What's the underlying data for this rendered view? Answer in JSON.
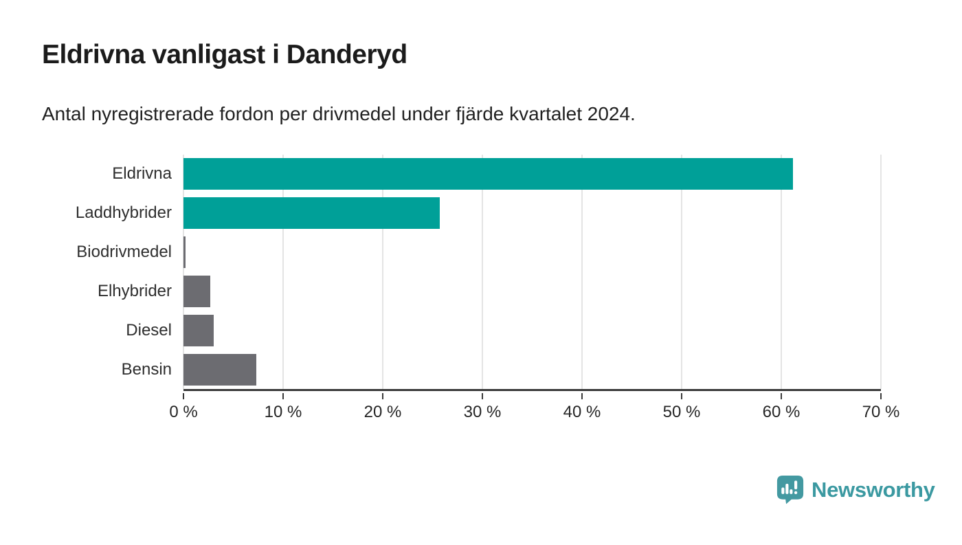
{
  "header": {
    "title": "Eldrivna vanligast i Danderyd",
    "subtitle": "Antal nyregistrerade fordon per drivmedel under fjärde kvartalet 2024."
  },
  "chart_data": {
    "type": "bar",
    "orientation": "horizontal",
    "title": "Eldrivna vanligast i Danderyd",
    "subtitle": "Antal nyregistrerade fordon per drivmedel under fjärde kvartalet 2024.",
    "categories": [
      "Eldrivna",
      "Laddhybrider",
      "Biodrivmedel",
      "Elhybrider",
      "Diesel",
      "Bensin"
    ],
    "values": [
      61.2,
      25.7,
      0.2,
      2.7,
      3.0,
      7.3
    ],
    "unit": "%",
    "xlabel": "",
    "ylabel": "",
    "xlim": [
      0,
      70
    ],
    "x_tick_values": [
      0,
      10,
      20,
      30,
      40,
      50,
      60,
      70
    ],
    "x_tick_labels": [
      "0 %",
      "10 %",
      "20 %",
      "30 %",
      "40 %",
      "50 %",
      "60 %",
      "70 %"
    ],
    "grid": true,
    "legend": false,
    "bar_colors": [
      "#00a098",
      "#00a098",
      "#6c6c71",
      "#6c6c71",
      "#6c6c71",
      "#6c6c71"
    ],
    "highlight_color": "#00a098",
    "default_color": "#6c6c71",
    "gridline_color": "#e4e4e4",
    "axis_color": "#3a3a3a"
  },
  "footer": {
    "brand": "Newsworthy",
    "brand_color": "#3b99a1",
    "logo_icon_color": "#4399a1",
    "logo_icon": "newsworthy-bubble-chart-icon"
  }
}
